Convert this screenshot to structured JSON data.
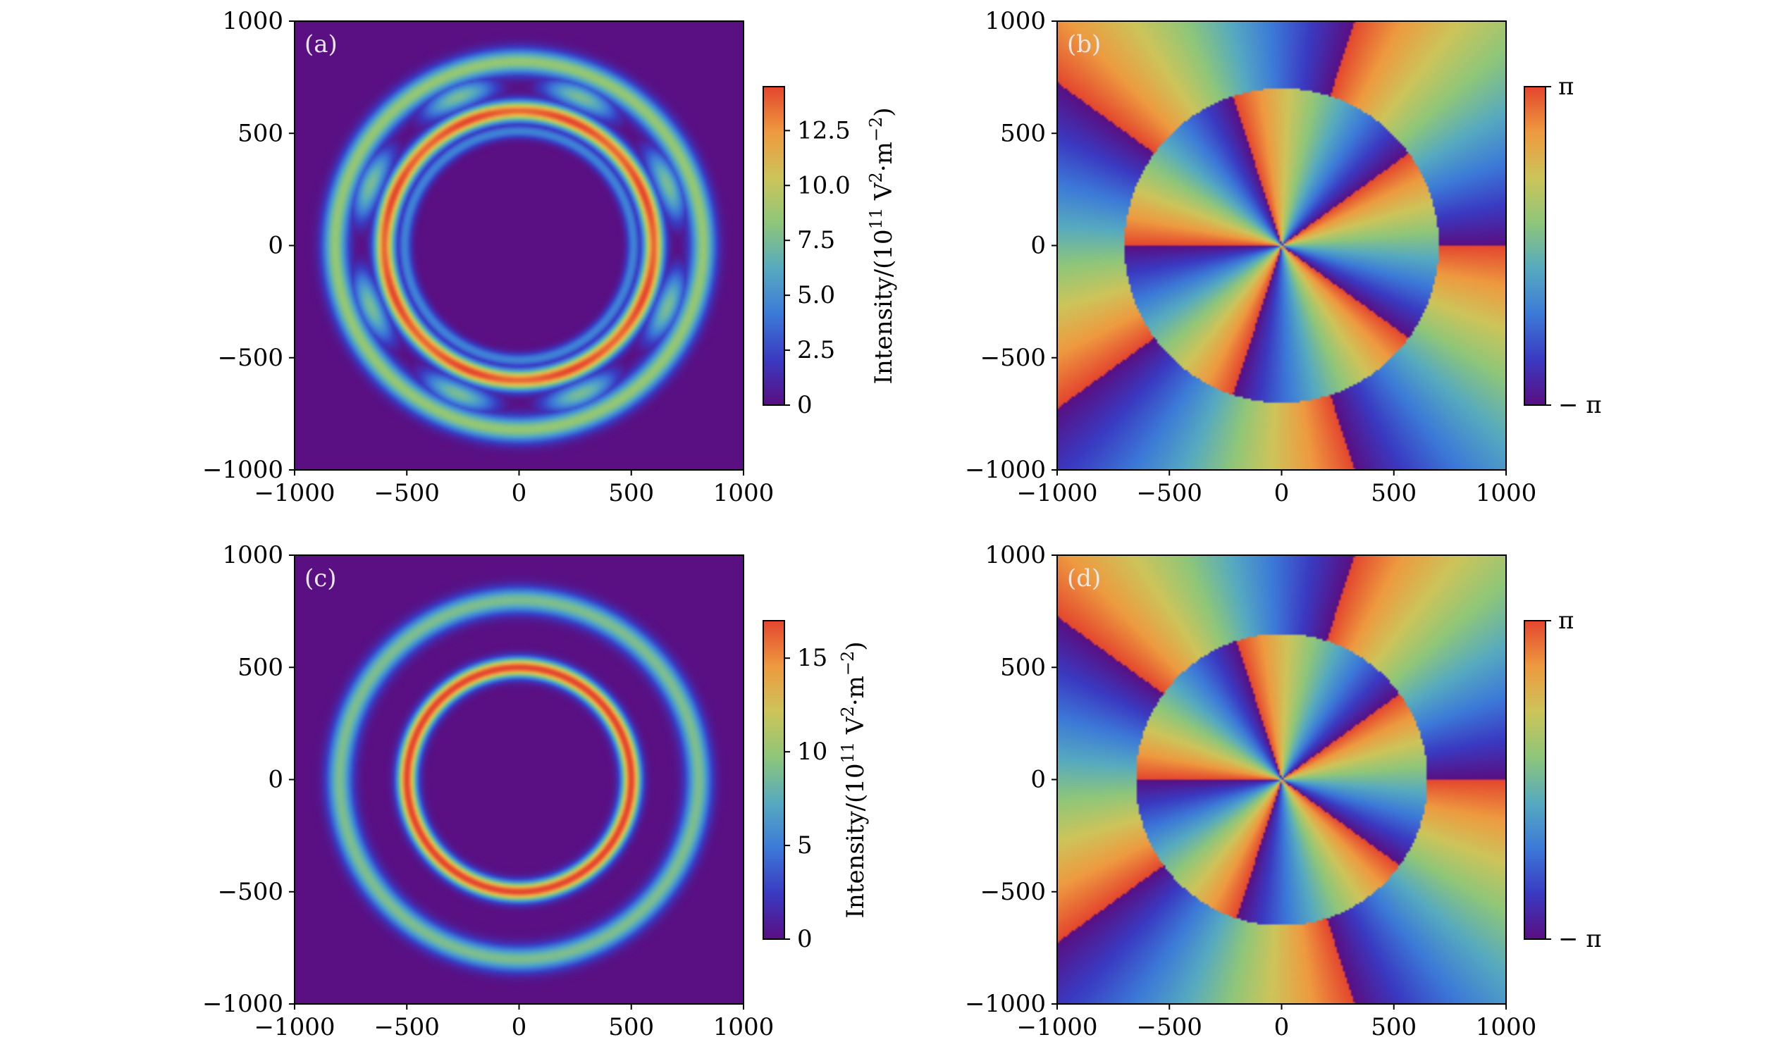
{
  "chart_data": [
    {
      "id": "a",
      "type": "heatmap",
      "panel_label": "(a)",
      "quantity": "intensity",
      "xlim": [
        -1000,
        1000
      ],
      "ylim": [
        -1000,
        1000
      ],
      "x_ticks": [
        "−1000",
        "−500",
        "0",
        "500",
        "1000"
      ],
      "y_ticks": [
        "1000",
        "500",
        "0",
        "−500",
        "−1000"
      ],
      "tick_values": [
        -1000,
        -500,
        0,
        500,
        1000
      ],
      "pattern": {
        "rings": [
          {
            "radius": 600,
            "peak": 14.5,
            "width": 45,
            "modulation": 0.06,
            "lobes": 8
          },
          {
            "radius": 510,
            "peak": 4.5,
            "width": 30,
            "modulation": 0,
            "lobes": 0
          },
          {
            "radius": 820,
            "peak": 8.5,
            "width": 55,
            "modulation": 0,
            "lobes": 0
          },
          {
            "radius": 715,
            "peak": 7.5,
            "width": 55,
            "modulation": 1.0,
            "lobes": 8
          }
        ]
      },
      "colorbar": {
        "min": 0,
        "max": 14.5,
        "tick_values": [
          0,
          2.5,
          5.0,
          7.5,
          10.0,
          12.5
        ],
        "tick_labels": [
          "0",
          "2.5",
          "5.0",
          "7.5",
          "10.0",
          "12.5"
        ],
        "label": "Intensity/(10",
        "label_sup1": "11",
        "label_mid": " V",
        "label_sup2": "2",
        "label_mid2": "·m",
        "label_sup3": "−2",
        "label_end": ")"
      }
    },
    {
      "id": "b",
      "type": "heatmap",
      "panel_label": "(b)",
      "quantity": "phase",
      "xlim": [
        -1000,
        1000
      ],
      "ylim": [
        -1000,
        1000
      ],
      "x_ticks": [
        "−1000",
        "−500",
        "0",
        "500",
        "1000"
      ],
      "y_ticks": [
        "1000",
        "500",
        "0",
        "−500",
        "−1000"
      ],
      "tick_values": [
        -1000,
        -500,
        0,
        500,
        1000
      ],
      "pattern": {
        "charge": 5,
        "boundary_radius": 700,
        "inner_offset_deg": 0,
        "outer_offset_deg": 36
      },
      "colorbar": {
        "min": -3.14159,
        "max": 3.14159,
        "top_label": "π",
        "bottom_label": "− π"
      }
    },
    {
      "id": "c",
      "type": "heatmap",
      "panel_label": "(c)",
      "quantity": "intensity",
      "xlim": [
        -1000,
        1000
      ],
      "ylim": [
        -1000,
        1000
      ],
      "x_ticks": [
        "−1000",
        "−500",
        "0",
        "500",
        "1000"
      ],
      "y_ticks": [
        "1000",
        "500",
        "0",
        "−500",
        "−1000"
      ],
      "tick_values": [
        -1000,
        -500,
        0,
        500,
        1000
      ],
      "pattern": {
        "rings": [
          {
            "radius": 500,
            "peak": 17,
            "width": 42,
            "modulation": 0,
            "lobes": 0
          },
          {
            "radius": 800,
            "peak": 9,
            "width": 55,
            "modulation": 0,
            "lobes": 0
          }
        ]
      },
      "colorbar": {
        "min": 0,
        "max": 17,
        "tick_values": [
          0,
          5,
          10,
          15
        ],
        "tick_labels": [
          "0",
          "5",
          "10",
          "15"
        ],
        "label": "Intensity/(10",
        "label_sup1": "11",
        "label_mid": " V",
        "label_sup2": "2",
        "label_mid2": "·m",
        "label_sup3": "−2",
        "label_end": ")"
      }
    },
    {
      "id": "d",
      "type": "heatmap",
      "panel_label": "(d)",
      "quantity": "phase",
      "xlim": [
        -1000,
        1000
      ],
      "ylim": [
        -1000,
        1000
      ],
      "x_ticks": [
        "−1000",
        "−500",
        "0",
        "500",
        "1000"
      ],
      "y_ticks": [
        "1000",
        "500",
        "0",
        "−500",
        "−1000"
      ],
      "tick_values": [
        -1000,
        -500,
        0,
        500,
        1000
      ],
      "pattern": {
        "charge": 5,
        "boundary_radius": 650,
        "inner_offset_deg": 0,
        "outer_offset_deg": 36
      },
      "colorbar": {
        "min": -3.14159,
        "max": 3.14159,
        "top_label": "π",
        "bottom_label": "− π"
      }
    }
  ],
  "colormap": [
    "#5a0f82",
    "#3a3ac2",
    "#3c7ad8",
    "#56aac0",
    "#8ec67a",
    "#cdc45a",
    "#ee9a40",
    "#e4462e"
  ]
}
